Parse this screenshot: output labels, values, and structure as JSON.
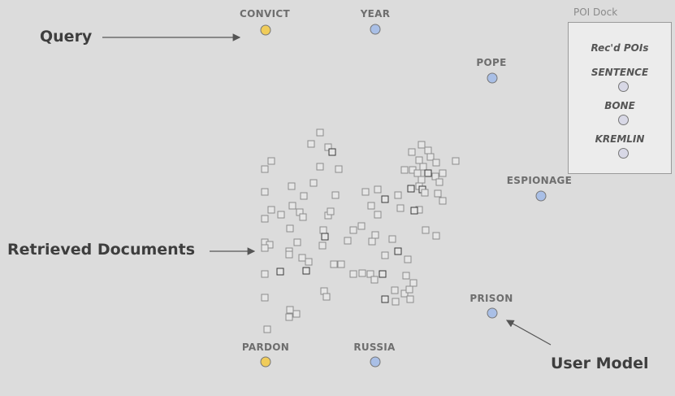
{
  "colors": {
    "query_dot": "#f0cc5a",
    "user_model_dot": "#a9bfe6",
    "doc_stroke": "#8c8c8c",
    "doc_stroke_dark": "#3a3a3a",
    "doc_fill": "#e6e6e6"
  },
  "query_pois": [
    {
      "label": "CONVICT"
    },
    {
      "label": "PARDON"
    }
  ],
  "user_model_pois": [
    {
      "label": "YEAR"
    },
    {
      "label": "POPE"
    },
    {
      "label": "ESPIONAGE"
    },
    {
      "label": "PRISON"
    },
    {
      "label": "RUSSIA"
    }
  ],
  "callouts": {
    "query": "Query",
    "retrieved": "Retrieved Documents",
    "user_model": "User Model"
  },
  "dock": {
    "title": "POI Dock",
    "heading": "Rec'd POIs",
    "items": [
      "SENTENCE",
      "BONE",
      "KREMLIN"
    ]
  },
  "documents": {
    "count": 100
  }
}
